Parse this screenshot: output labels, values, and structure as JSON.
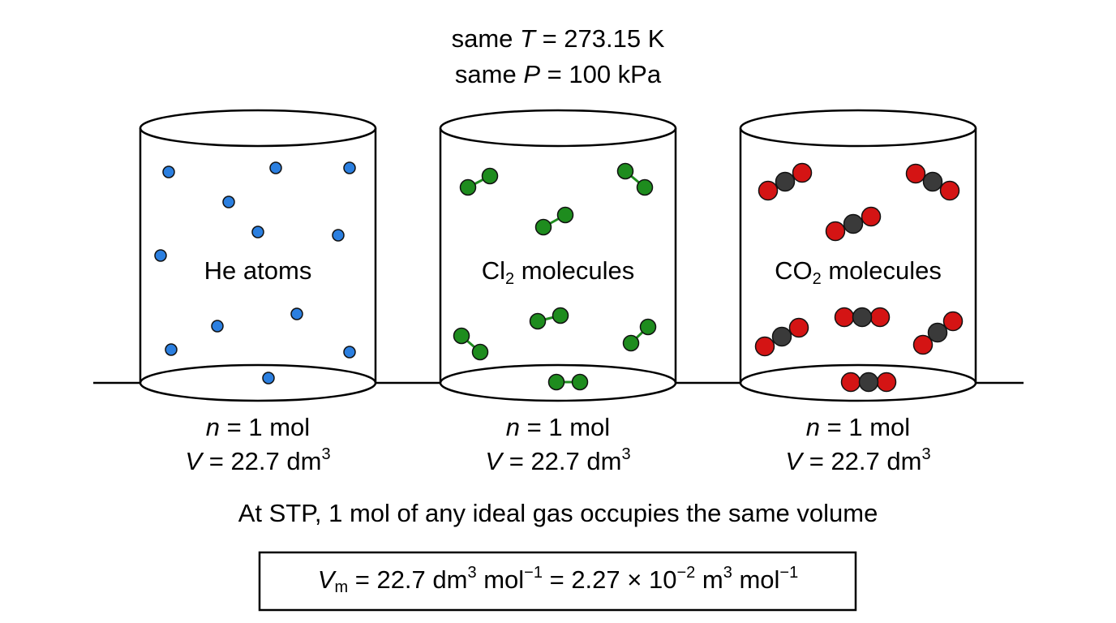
{
  "conditions": [
    {
      "label": "same",
      "symbol": "T",
      "value": " = 273.15 K"
    },
    {
      "label": "same",
      "symbol": "P",
      "value": " = 100 kPa"
    }
  ],
  "containers": [
    {
      "label": [
        "He atoms"
      ],
      "amount": [
        "n",
        " = 1 mol"
      ],
      "volume": [
        "V",
        " = 22.7 dm",
        "3"
      ]
    },
    {
      "label": [
        "Cl",
        "2",
        " molecules"
      ],
      "amount": [
        "n",
        " = 1 mol"
      ],
      "volume": [
        "V",
        " = 22.7 dm",
        "3"
      ]
    },
    {
      "label": [
        "CO",
        "2",
        " molecules"
      ],
      "amount": [
        "n",
        " = 1 mol"
      ],
      "volume": [
        "V",
        " = 22.7 dm",
        "3"
      ]
    }
  ],
  "statement": "At STP, 1 mol of any ideal gas occupies the same volume",
  "formula": [
    "V",
    "m",
    " = 22.7 dm",
    "3",
    " mol",
    "−1",
    " = 2.27 × 10",
    "−2",
    " m",
    "3",
    " mol",
    "−1"
  ]
}
